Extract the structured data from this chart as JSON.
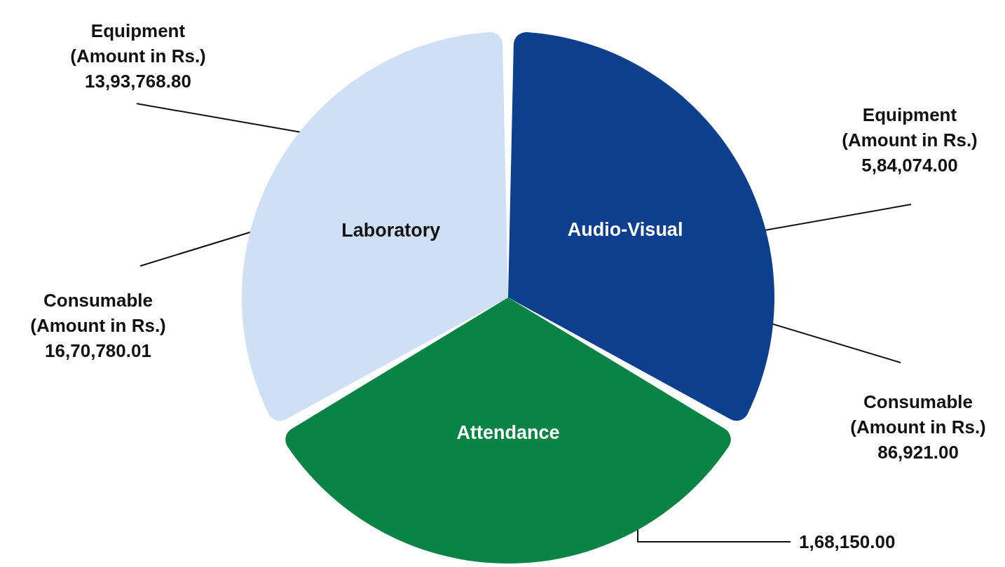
{
  "chart_data": {
    "type": "pie",
    "categories": [
      "Audio-Visual",
      "Attendance",
      "Laboratory"
    ],
    "values": [
      33.33,
      33.33,
      33.34
    ],
    "colors": [
      "#0d3f8f",
      "#0a8444",
      "#cfe0f6"
    ],
    "annotations": [
      "Equipment\n(Amount in Rs.)\n13,93,768.80",
      "Consumable\n(Amount in Rs.)\n16,70,780.01",
      "Equipment\n(Amount in Rs.)\n5,84,074.00",
      "Consumable\n(Amount in Rs.)\n86,921.00",
      "1,68,150.00"
    ]
  }
}
